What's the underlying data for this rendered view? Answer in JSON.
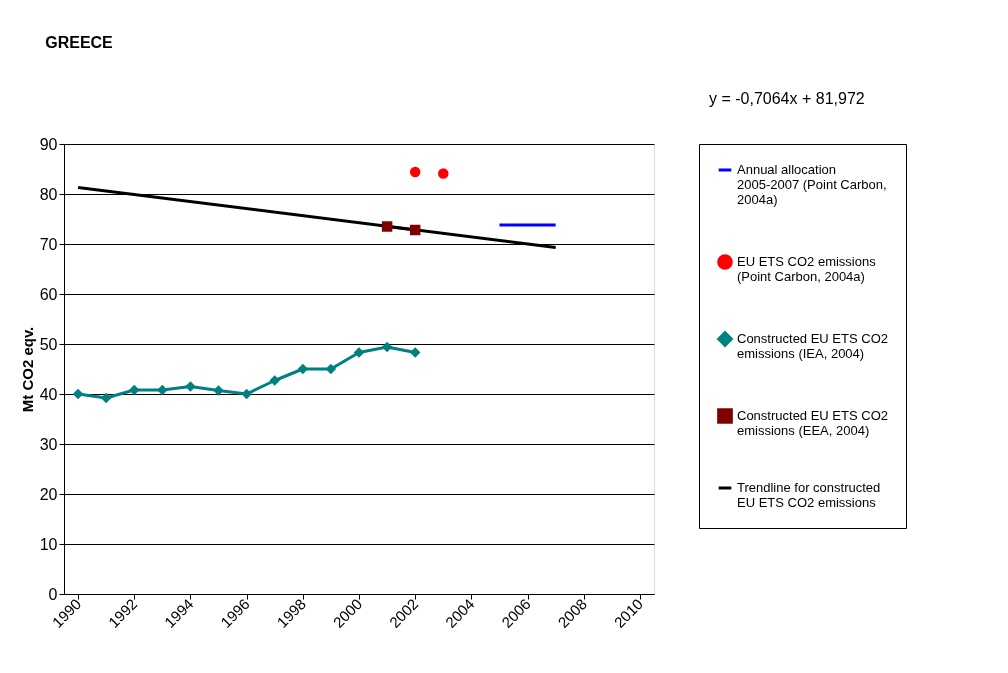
{
  "chart_data": {
    "type": "line",
    "title": "GREECE",
    "ylabel": "Mt CO2 eqv.",
    "annotations": [
      "y = -0,7064x + 81,972"
    ],
    "xlim": [
      1989.5,
      2010.5
    ],
    "xticks": [
      1990,
      1992,
      1994,
      1996,
      1998,
      2000,
      2002,
      2004,
      2006,
      2008,
      2010
    ],
    "ylim": [
      0,
      90
    ],
    "yticks": [
      0,
      10,
      20,
      30,
      40,
      50,
      60,
      70,
      80,
      90
    ],
    "grid": "y",
    "legend": "right",
    "series": [
      {
        "name": "Annual allocation 2005-2007 (Point Carbon, 2004a)",
        "marker": "none",
        "color": "#0000ff",
        "x": [
          2005,
          2007
        ],
        "values": [
          73.8,
          73.8
        ]
      },
      {
        "name": "EU ETS CO2 emissions (Point Carbon, 2004a)",
        "type": "scatter",
        "marker": "circle",
        "color": "#ff0000",
        "x": [
          2002,
          2003
        ],
        "values": [
          84.4,
          84.1
        ]
      },
      {
        "name": "Constructed EU ETS CO2 emissions (IEA, 2004)",
        "marker": "diamond",
        "color": "#008080",
        "x": [
          1990,
          1991,
          1992,
          1993,
          1994,
          1995,
          1996,
          1997,
          1998,
          1999,
          2000,
          2001,
          2002
        ],
        "values": [
          40.0,
          39.2,
          40.8,
          40.8,
          41.5,
          40.7,
          40.0,
          42.7,
          45.0,
          45.0,
          48.3,
          49.4,
          48.3
        ]
      },
      {
        "name": "Constructed EU ETS CO2 emissions (EEA, 2004)",
        "marker": "square",
        "color": "#800000",
        "x": [
          2001,
          2002
        ],
        "values": [
          73.5,
          72.8
        ]
      },
      {
        "name": "Trendline for constructed EU ETS CO2 emissions",
        "marker": "none",
        "color": "#000000",
        "x": [
          1990,
          2007
        ],
        "values": [
          81.3,
          69.3
        ]
      }
    ]
  }
}
